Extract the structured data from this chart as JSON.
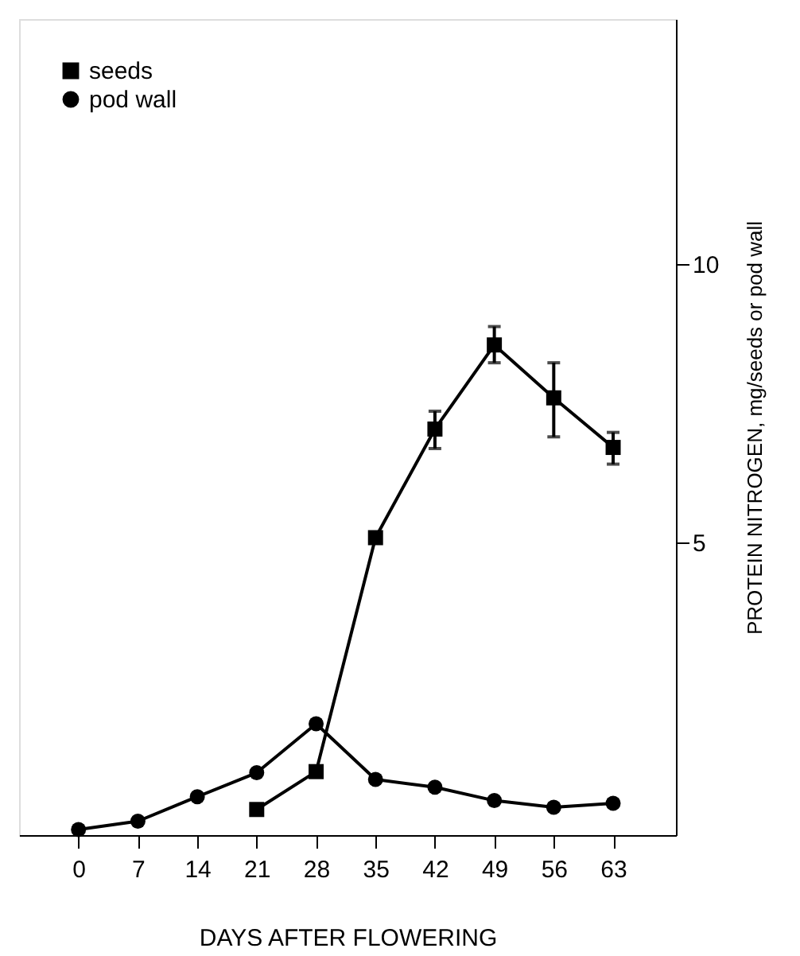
{
  "chart_data": {
    "type": "line",
    "xlabel": "DAYS AFTER FLOWERING",
    "ylabel": "PROTEIN NITROGEN, mg/seeds or pod wall",
    "xlim": [
      -7,
      70.4
    ],
    "xticks": [
      0,
      7,
      14,
      21,
      28,
      35,
      42,
      49,
      56,
      63
    ],
    "ylim": [
      -0.25,
      14.4
    ],
    "yticks": [
      5,
      10
    ],
    "grid": false,
    "legend": "top left",
    "line_style": "solid",
    "series": [
      {
        "name": "seeds",
        "color": "#000000",
        "marker": "square",
        "x": [
          21,
          28,
          35,
          42,
          49,
          56,
          63
        ],
        "values": [
          0.21,
          0.89,
          5.09,
          7.04,
          8.55,
          7.6,
          6.71
        ],
        "errors": [
          null,
          null,
          null,
          [
            6.69,
            7.36
          ],
          [
            8.23,
            8.88
          ],
          [
            6.9,
            8.23
          ],
          [
            6.41,
            6.98
          ]
        ]
      },
      {
        "name": "pod wall",
        "color": "#000000",
        "marker": "circle",
        "x": [
          0,
          7,
          14,
          21,
          28,
          35,
          42,
          49,
          56,
          63
        ],
        "values": [
          -0.15,
          0.0,
          0.44,
          0.87,
          1.75,
          0.75,
          0.61,
          0.37,
          0.25,
          0.32
        ]
      }
    ]
  }
}
